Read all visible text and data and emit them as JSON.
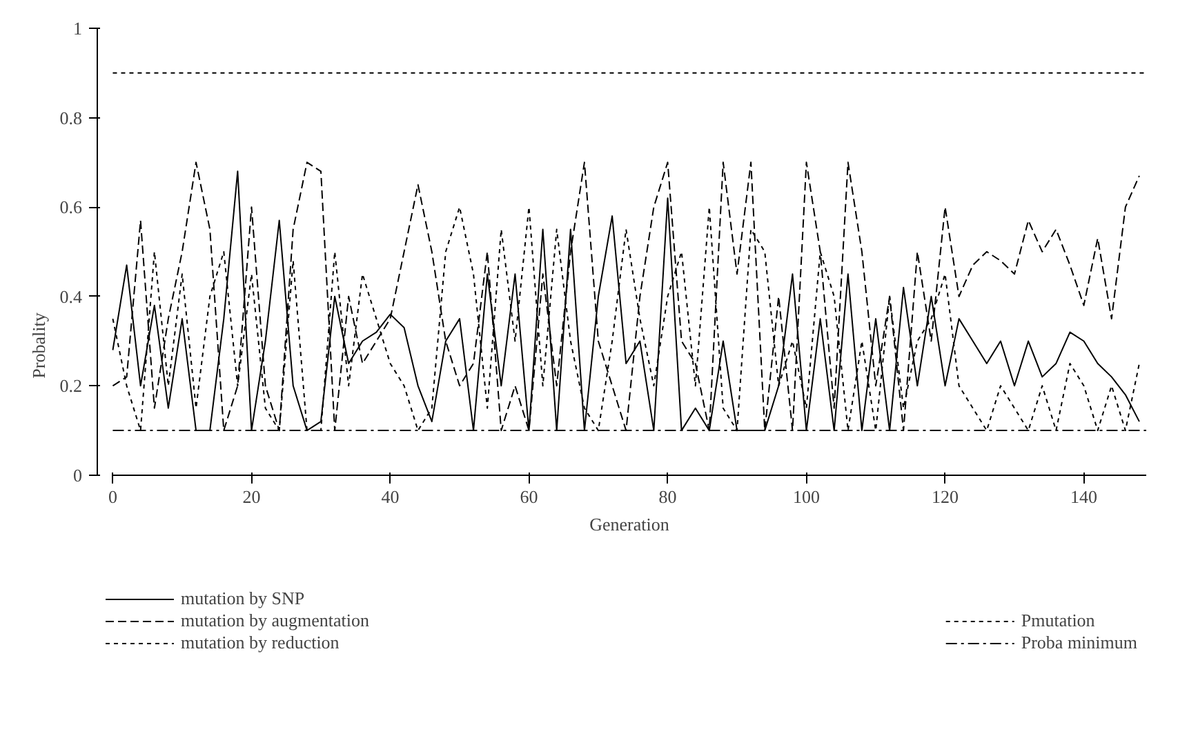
{
  "chart_data": {
    "type": "line",
    "xlabel": "Generation",
    "ylabel": "Probality",
    "x": [
      0,
      2,
      4,
      6,
      8,
      10,
      12,
      14,
      16,
      18,
      20,
      22,
      24,
      26,
      28,
      30,
      32,
      34,
      36,
      38,
      40,
      42,
      44,
      46,
      48,
      50,
      52,
      54,
      56,
      58,
      60,
      62,
      64,
      66,
      68,
      70,
      72,
      74,
      76,
      78,
      80,
      82,
      84,
      86,
      88,
      90,
      92,
      94,
      96,
      98,
      100,
      102,
      104,
      106,
      108,
      110,
      112,
      114,
      116,
      118,
      120,
      122,
      124,
      126,
      128,
      130,
      132,
      134,
      136,
      138,
      140,
      142,
      144,
      146,
      148
    ],
    "series": [
      {
        "name": "mutation by SNP",
        "color": "#000000",
        "line_style": "solid",
        "values": [
          0.28,
          0.47,
          0.2,
          0.38,
          0.15,
          0.35,
          0.1,
          0.1,
          0.35,
          0.68,
          0.1,
          0.3,
          0.57,
          0.2,
          0.1,
          0.12,
          0.4,
          0.25,
          0.3,
          0.32,
          0.36,
          0.33,
          0.2,
          0.12,
          0.3,
          0.35,
          0.1,
          0.45,
          0.2,
          0.45,
          0.1,
          0.55,
          0.1,
          0.55,
          0.1,
          0.4,
          0.58,
          0.25,
          0.3,
          0.1,
          0.62,
          0.1,
          0.15,
          0.1,
          0.3,
          0.1,
          0.1,
          0.1,
          0.2,
          0.45,
          0.1,
          0.35,
          0.1,
          0.45,
          0.1,
          0.35,
          0.1,
          0.42,
          0.2,
          0.4,
          0.2,
          0.35,
          0.3,
          0.25,
          0.3,
          0.2,
          0.3,
          0.22,
          0.25,
          0.32,
          0.3,
          0.25,
          0.22,
          0.18,
          0.12
        ]
      },
      {
        "name": "mutation by augmentation",
        "color": "#000000",
        "line_style": "dashed",
        "values": [
          0.2,
          0.22,
          0.57,
          0.15,
          0.35,
          0.5,
          0.7,
          0.55,
          0.1,
          0.2,
          0.6,
          0.2,
          0.1,
          0.55,
          0.7,
          0.68,
          0.1,
          0.4,
          0.25,
          0.3,
          0.35,
          0.5,
          0.65,
          0.5,
          0.3,
          0.2,
          0.25,
          0.5,
          0.1,
          0.2,
          0.1,
          0.45,
          0.2,
          0.5,
          0.7,
          0.3,
          0.2,
          0.1,
          0.4,
          0.6,
          0.7,
          0.3,
          0.25,
          0.1,
          0.7,
          0.45,
          0.7,
          0.1,
          0.4,
          0.1,
          0.7,
          0.5,
          0.15,
          0.7,
          0.5,
          0.2,
          0.4,
          0.1,
          0.5,
          0.3,
          0.6,
          0.4,
          0.47,
          0.5,
          0.48,
          0.45,
          0.57,
          0.5,
          0.55,
          0.47,
          0.38,
          0.53,
          0.35,
          0.6,
          0.67
        ]
      },
      {
        "name": "mutation by reduction",
        "color": "#000000",
        "line_style": "dotted",
        "values": [
          0.35,
          0.2,
          0.1,
          0.5,
          0.2,
          0.45,
          0.15,
          0.4,
          0.5,
          0.2,
          0.45,
          0.15,
          0.1,
          0.48,
          0.1,
          0.1,
          0.5,
          0.2,
          0.45,
          0.35,
          0.25,
          0.2,
          0.1,
          0.15,
          0.5,
          0.6,
          0.45,
          0.15,
          0.55,
          0.3,
          0.6,
          0.2,
          0.55,
          0.3,
          0.15,
          0.1,
          0.3,
          0.55,
          0.35,
          0.2,
          0.4,
          0.5,
          0.2,
          0.6,
          0.15,
          0.1,
          0.55,
          0.5,
          0.2,
          0.3,
          0.15,
          0.5,
          0.4,
          0.1,
          0.3,
          0.1,
          0.4,
          0.15,
          0.3,
          0.35,
          0.45,
          0.2,
          0.15,
          0.1,
          0.2,
          0.15,
          0.1,
          0.2,
          0.1,
          0.25,
          0.2,
          0.1,
          0.2,
          0.1,
          0.25
        ]
      }
    ],
    "ref_lines": [
      {
        "axis": "y",
        "value": 0.9,
        "label": "Pmutation",
        "color": "#000000",
        "line_style": "dotted"
      },
      {
        "axis": "y",
        "value": 0.1,
        "label": "Proba minimum",
        "color": "#000000",
        "line_style": "dashdot"
      }
    ],
    "xlim": [
      0,
      149
    ],
    "ylim": [
      0,
      1
    ],
    "xticks": [
      0,
      20,
      40,
      60,
      80,
      100,
      120,
      140
    ],
    "yticks": [
      0,
      0.2,
      0.4,
      0.6,
      0.8,
      1
    ],
    "grid": false,
    "legend": "bottom",
    "marker": "none"
  }
}
